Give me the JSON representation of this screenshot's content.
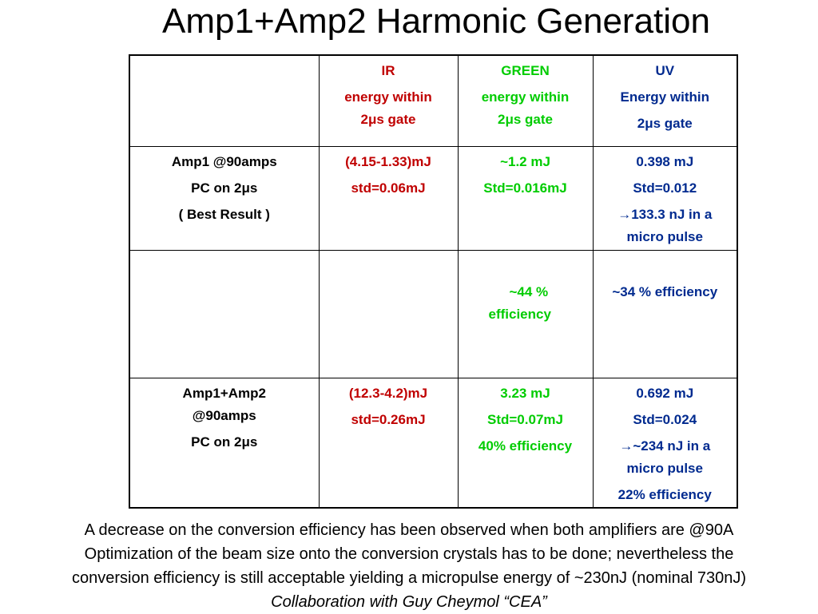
{
  "title": "Amp1+Amp2 Harmonic Generation",
  "table": {
    "header": {
      "corner": "",
      "ir": [
        "IR",
        "energy within",
        "2μs gate"
      ],
      "green": [
        "GREEN",
        "energy within",
        "2μs gate"
      ],
      "uv": [
        "UV",
        "Energy within",
        "2μs gate"
      ]
    },
    "row1": {
      "label": [
        "Amp1 @90amps",
        "PC on 2μs",
        "( Best Result )"
      ],
      "ir": [
        "(4.15-1.33)mJ",
        "std=0.06mJ"
      ],
      "green": [
        "~1.2 mJ",
        "Std=0.016mJ"
      ],
      "uv": [
        "0.398 mJ",
        "Std=0.012",
        "133.3 nJ in a",
        "micro pulse"
      ]
    },
    "row2": {
      "green": [
        "~44 %",
        "efficiency"
      ],
      "uv": "~34 % efficiency"
    },
    "row3": {
      "label": [
        "Amp1+Amp2",
        "@90amps",
        "PC on 2μs"
      ],
      "ir": [
        "(12.3-4.2)mJ",
        "std=0.26mJ"
      ],
      "green": [
        "3.23 mJ",
        "Std=0.07mJ",
        "40% efficiency"
      ],
      "uv": [
        "0.692 mJ",
        "Std=0.024",
        "~234 nJ in a",
        "micro pulse",
        "22% efficiency"
      ]
    },
    "arrow": "→"
  },
  "footer": {
    "line1": "A decrease on the conversion efficiency has been observed when both amplifiers are @90A",
    "line2": "Optimization of the beam size onto the conversion crystals has to be done; nevertheless the",
    "line3": "conversion efficiency is still acceptable yielding a micropulse energy of ~230nJ (nominal 730nJ)",
    "line4": "Collaboration with Guy Cheymol “CEA”"
  },
  "colors": {
    "ir": "#c00000",
    "green": "#00cc00",
    "uv": "#002a8f"
  }
}
